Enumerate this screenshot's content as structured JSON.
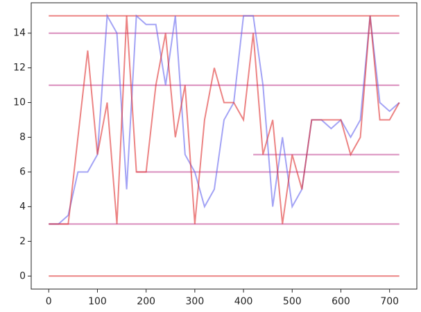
{
  "chart_data": {
    "type": "line",
    "x": [
      0,
      20,
      40,
      60,
      80,
      100,
      120,
      140,
      160,
      180,
      200,
      220,
      240,
      260,
      280,
      300,
      320,
      340,
      360,
      380,
      400,
      420,
      440,
      460,
      480,
      500,
      520,
      540,
      560,
      580,
      600,
      620,
      640,
      660,
      680,
      700,
      720
    ],
    "series": [
      {
        "color": "#e03030",
        "values": [
          0,
          0,
          0,
          0,
          0,
          0,
          0,
          0,
          0,
          0,
          0,
          0,
          0,
          0,
          0,
          0,
          0,
          0,
          0,
          0,
          0,
          0,
          0,
          0,
          0,
          0,
          0,
          0,
          0,
          0,
          0,
          0,
          0,
          0,
          0,
          0,
          0
        ]
      },
      {
        "color": "#e03030",
        "values": [
          15,
          15,
          15,
          15,
          15,
          15,
          15,
          15,
          15,
          15,
          15,
          15,
          15,
          15,
          15,
          15,
          15,
          15,
          15,
          15,
          15,
          15,
          15,
          15,
          15,
          15,
          15,
          15,
          15,
          15,
          15,
          15,
          15,
          15,
          15,
          15,
          15
        ]
      },
      {
        "color": "#c0408f",
        "values": [
          14,
          14,
          14,
          14,
          14,
          14,
          14,
          14,
          14,
          14,
          14,
          14,
          14,
          14,
          14,
          14,
          14,
          14,
          14,
          14,
          14,
          14,
          14,
          14,
          14,
          14,
          14,
          14,
          14,
          14,
          14,
          14,
          14,
          14,
          14,
          14,
          14
        ]
      },
      {
        "color": "#c0408f",
        "values": [
          11,
          11,
          11,
          11,
          11,
          11,
          11,
          11,
          11,
          11,
          11,
          11,
          11,
          11,
          11,
          11,
          11,
          11,
          11,
          11,
          11,
          11,
          11,
          11,
          11,
          11,
          11,
          11,
          11,
          11,
          11,
          11,
          11,
          11,
          11,
          11,
          11
        ]
      },
      {
        "color": "#c0408f",
        "values": [
          3,
          3,
          3,
          3,
          3,
          3,
          3,
          3,
          3,
          3,
          3,
          3,
          3,
          3,
          3,
          3,
          3,
          3,
          3,
          3,
          3,
          3,
          3,
          3,
          3,
          3,
          3,
          3,
          3,
          3,
          3,
          3,
          3,
          3,
          3,
          3,
          3
        ]
      },
      {
        "color": "#c0408f",
        "values": [
          null,
          null,
          null,
          null,
          null,
          null,
          null,
          null,
          null,
          6,
          6,
          6,
          6,
          6,
          6,
          6,
          6,
          6,
          6,
          6,
          6,
          6,
          6,
          6,
          6,
          6,
          6,
          6,
          6,
          6,
          6,
          6,
          6,
          6,
          6,
          6,
          6
        ]
      },
      {
        "color": "#c0408f",
        "values": [
          null,
          null,
          null,
          null,
          null,
          null,
          null,
          null,
          null,
          null,
          null,
          null,
          null,
          null,
          null,
          null,
          null,
          null,
          null,
          null,
          null,
          7,
          7,
          7,
          7,
          7,
          7,
          7,
          7,
          7,
          7,
          7,
          7,
          7,
          7,
          7,
          7
        ]
      },
      {
        "color": "#6666ee",
        "values": [
          3,
          3,
          3.5,
          6,
          6,
          7,
          15,
          14,
          5,
          15,
          14.5,
          14.5,
          11,
          15,
          7,
          6,
          4,
          5,
          9,
          10,
          15,
          15,
          11,
          4,
          8,
          4,
          5,
          9,
          9,
          8.5,
          9,
          8,
          9,
          15,
          10,
          9.5,
          10
        ]
      },
      {
        "color": "#e03030",
        "values": [
          3,
          3,
          3,
          8,
          13,
          7,
          10,
          3,
          15,
          6,
          6,
          11,
          14,
          8,
          11,
          3,
          9,
          12,
          10,
          10,
          9,
          14,
          7,
          9,
          3,
          7,
          5,
          9,
          9,
          9,
          9,
          7,
          8,
          15,
          9,
          9,
          10
        ]
      }
    ],
    "xlim": [
      -36,
      756
    ],
    "xticks": [
      0,
      100,
      200,
      300,
      400,
      500,
      600,
      700
    ],
    "ylim": [
      -0.75,
      15.75
    ],
    "yticks": [
      0,
      2,
      4,
      6,
      8,
      10,
      12,
      14
    ]
  }
}
